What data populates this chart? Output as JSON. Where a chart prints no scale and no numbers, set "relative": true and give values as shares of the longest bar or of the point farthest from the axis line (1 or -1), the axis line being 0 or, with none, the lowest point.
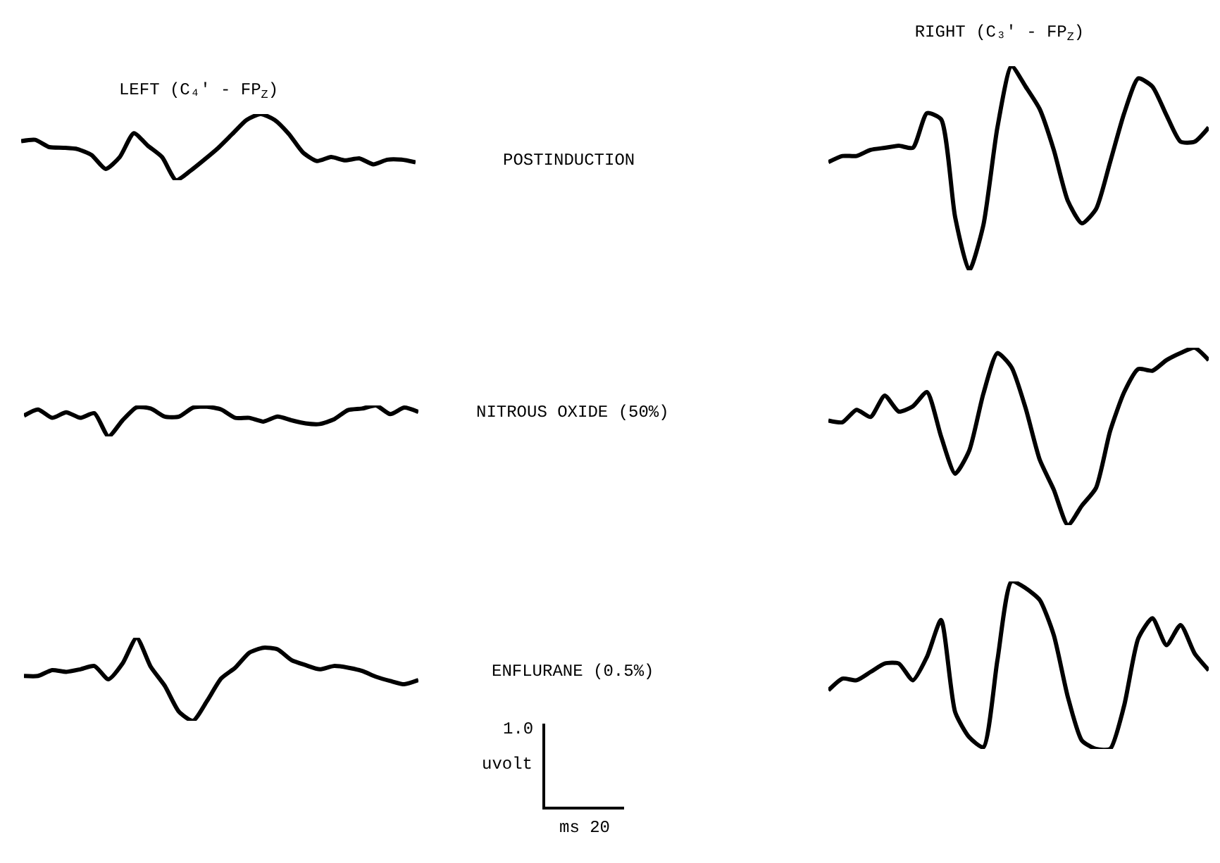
{
  "chart_data": [
    {
      "type": "line",
      "title": "LEFT (C₄' - FP$_{Z}$)",
      "relative": true,
      "color": "#000000",
      "annotations": [
        "POSTINDUCTION"
      ],
      "categories": [
        null,
        null,
        null,
        null,
        null,
        null,
        null,
        null,
        null,
        null,
        null,
        null,
        null,
        null,
        null,
        null,
        null,
        null,
        null,
        null,
        null,
        null,
        null,
        null,
        null,
        null,
        null,
        null,
        null
      ],
      "values": [
        0.59,
        0.61,
        0.5,
        0.49,
        0.47,
        0.38,
        0.17,
        0.35,
        0.71,
        0.52,
        0.35,
        0.0,
        0.14,
        0.31,
        0.49,
        0.7,
        0.91,
        1.0,
        0.91,
        0.7,
        0.42,
        0.29,
        0.35,
        0.3,
        0.33,
        0.24,
        0.31,
        0.31,
        0.27
      ]
    },
    {
      "type": "line",
      "relative": true,
      "color": "#000000",
      "annotations": [
        "NITROUS OXIDE (50%)"
      ],
      "categories": [
        null,
        null,
        null,
        null,
        null,
        null,
        null,
        null,
        null,
        null,
        null,
        null,
        null,
        null,
        null,
        null,
        null,
        null,
        null,
        null,
        null,
        null,
        null,
        null,
        null,
        null,
        null,
        null,
        null
      ],
      "values": [
        0.67,
        0.87,
        0.6,
        0.78,
        0.6,
        0.75,
        0.0,
        0.52,
        0.94,
        0.9,
        0.64,
        0.64,
        0.93,
        0.96,
        0.87,
        0.6,
        0.6,
        0.48,
        0.64,
        0.52,
        0.42,
        0.4,
        0.55,
        0.85,
        0.9,
        1.0,
        0.72,
        0.93,
        0.79
      ]
    },
    {
      "type": "line",
      "relative": true,
      "color": "#000000",
      "annotations": [
        "ENFLURANE (0.5%)",
        "1.0",
        "uvolt",
        "ms 20"
      ],
      "categories": [
        null,
        null,
        null,
        null,
        null,
        null,
        null,
        null,
        null,
        null,
        null,
        null,
        null,
        null,
        null,
        null,
        null,
        null,
        null,
        null,
        null,
        null,
        null,
        null,
        null,
        null,
        null,
        null,
        null
      ],
      "values": [
        0.54,
        0.54,
        0.61,
        0.59,
        0.62,
        0.66,
        0.5,
        0.69,
        1.0,
        0.65,
        0.42,
        0.11,
        0.0,
        0.24,
        0.51,
        0.64,
        0.82,
        0.88,
        0.86,
        0.73,
        0.67,
        0.62,
        0.66,
        0.64,
        0.6,
        0.53,
        0.48,
        0.44,
        0.49
      ]
    },
    {
      "type": "line",
      "title": "RIGHT (C₃' - FP$_{Z}$)",
      "relative": true,
      "color": "#000000",
      "categories": [
        null,
        null,
        null,
        null,
        null,
        null,
        null,
        null,
        null,
        null,
        null,
        null,
        null,
        null,
        null,
        null,
        null,
        null,
        null,
        null,
        null,
        null,
        null,
        null,
        null,
        null,
        null,
        null
      ],
      "values": [
        0.53,
        0.56,
        0.56,
        0.59,
        0.6,
        0.61,
        0.6,
        0.77,
        0.74,
        0.26,
        0.0,
        0.22,
        0.7,
        1.0,
        0.9,
        0.79,
        0.59,
        0.34,
        0.23,
        0.3,
        0.53,
        0.77,
        0.94,
        0.9,
        0.76,
        0.63,
        0.63,
        0.7
      ]
    },
    {
      "type": "line",
      "relative": true,
      "color": "#000000",
      "categories": [
        null,
        null,
        null,
        null,
        null,
        null,
        null,
        null,
        null,
        null,
        null,
        null,
        null,
        null,
        null,
        null,
        null,
        null,
        null,
        null,
        null,
        null,
        null,
        null,
        null,
        null,
        null,
        null
      ],
      "values": [
        0.59,
        0.58,
        0.65,
        0.61,
        0.73,
        0.64,
        0.67,
        0.75,
        0.5,
        0.29,
        0.42,
        0.74,
        0.97,
        0.89,
        0.66,
        0.37,
        0.2,
        0.0,
        0.11,
        0.21,
        0.53,
        0.75,
        0.88,
        0.87,
        0.93,
        0.97,
        1.0,
        0.93
      ]
    },
    {
      "type": "line",
      "relative": true,
      "color": "#000000",
      "categories": [
        null,
        null,
        null,
        null,
        null,
        null,
        null,
        null,
        null,
        null,
        null,
        null,
        null,
        null,
        null,
        null,
        null,
        null,
        null,
        null,
        null,
        null,
        null,
        null,
        null,
        null,
        null,
        null
      ],
      "values": [
        0.35,
        0.42,
        0.41,
        0.46,
        0.51,
        0.51,
        0.41,
        0.55,
        0.77,
        0.22,
        0.07,
        0.01,
        0.53,
        1.0,
        0.96,
        0.89,
        0.68,
        0.31,
        0.05,
        0.0,
        0.0,
        0.26,
        0.66,
        0.78,
        0.62,
        0.74,
        0.57,
        0.47
      ]
    }
  ]
}
